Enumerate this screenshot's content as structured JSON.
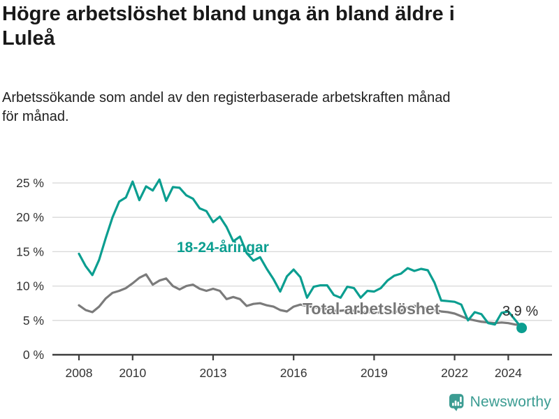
{
  "header": {
    "title": "Högre arbetslöshet bland unga än bland äldre i Luleå",
    "subtitle": "Arbetssökande som andel av den registerbaserade arbetskraften månad för månad."
  },
  "chart_data": {
    "type": "line",
    "title": "Högre arbetslöshet bland unga än bland äldre i Luleå",
    "xlabel": "",
    "ylabel": "",
    "grid": "horizontal",
    "x_range": [
      2008,
      2024.5
    ],
    "ylim": [
      0,
      26.5
    ],
    "y_ticks": [
      {
        "value": 0,
        "label": "0 %"
      },
      {
        "value": 5,
        "label": "5 %"
      },
      {
        "value": 10,
        "label": "10 %"
      },
      {
        "value": 15,
        "label": "15 %"
      },
      {
        "value": 20,
        "label": "20 %"
      },
      {
        "value": 25,
        "label": "25 %"
      }
    ],
    "x_ticks": [
      {
        "year": 2008,
        "label": "2008"
      },
      {
        "year": 2010,
        "label": "2010"
      },
      {
        "year": 2013,
        "label": "2013"
      },
      {
        "year": 2016,
        "label": "2016"
      },
      {
        "year": 2019,
        "label": "2019"
      },
      {
        "year": 2022,
        "label": "2022"
      },
      {
        "year": 2024,
        "label": "2024"
      }
    ],
    "series": [
      {
        "name": "18-24-åringar",
        "color": "#0b9e90",
        "x_start": 2008.0,
        "x_step": 0.25,
        "values": [
          14.7,
          12.9,
          11.6,
          13.8,
          17.0,
          20.0,
          22.3,
          22.9,
          25.2,
          22.5,
          24.5,
          23.9,
          25.5,
          22.4,
          24.4,
          24.3,
          23.2,
          22.7,
          21.3,
          20.9,
          19.3,
          20.1,
          18.6,
          16.5,
          17.2,
          14.8,
          13.7,
          14.2,
          12.5,
          11.0,
          9.2,
          11.4,
          12.4,
          11.3,
          8.3,
          9.9,
          10.1,
          10.1,
          8.7,
          8.3,
          9.9,
          9.7,
          8.3,
          9.3,
          9.2,
          9.7,
          10.8,
          11.5,
          11.8,
          12.6,
          12.2,
          12.5,
          12.3,
          10.5,
          7.9,
          7.8,
          7.7,
          7.3,
          5.0,
          6.2,
          5.9,
          4.6,
          4.4,
          6.1,
          6.3,
          5.1,
          3.9
        ]
      },
      {
        "name": "Total arbetslöshet",
        "color": "#7b7b7b",
        "x_start": 2008.0,
        "x_step": 0.25,
        "values": [
          7.2,
          6.5,
          6.2,
          7.0,
          8.2,
          9.0,
          9.3,
          9.7,
          10.4,
          11.2,
          11.7,
          10.2,
          10.8,
          11.1,
          10.0,
          9.5,
          10.0,
          10.2,
          9.6,
          9.3,
          9.6,
          9.3,
          8.1,
          8.4,
          8.1,
          7.1,
          7.4,
          7.5,
          7.2,
          7.0,
          6.5,
          6.3,
          7.0,
          7.3,
          7.1,
          6.9,
          6.8,
          6.6,
          6.4,
          6.4,
          6.5,
          6.4,
          6.2,
          6.2,
          6.2,
          6.1,
          6.1,
          6.2,
          6.4,
          6.9,
          7.1,
          6.9,
          6.7,
          6.5,
          6.3,
          6.2,
          6.0,
          5.6,
          5.2,
          5.0,
          4.8,
          4.7,
          4.6,
          4.7,
          4.6,
          4.4,
          4.3
        ]
      }
    ],
    "end_annotation": {
      "label": "3,9 %",
      "x": 2024.5,
      "value": 3.9,
      "series": "18-24-åringar"
    }
  },
  "footer": {
    "brand": "Newsworthy",
    "brand_color": "#3b9c92"
  },
  "colors": {
    "youth_line": "#0b9e90",
    "total_line": "#7b7b7b",
    "gridline": "#d8d8d8",
    "axis": "#3d3d3d"
  }
}
